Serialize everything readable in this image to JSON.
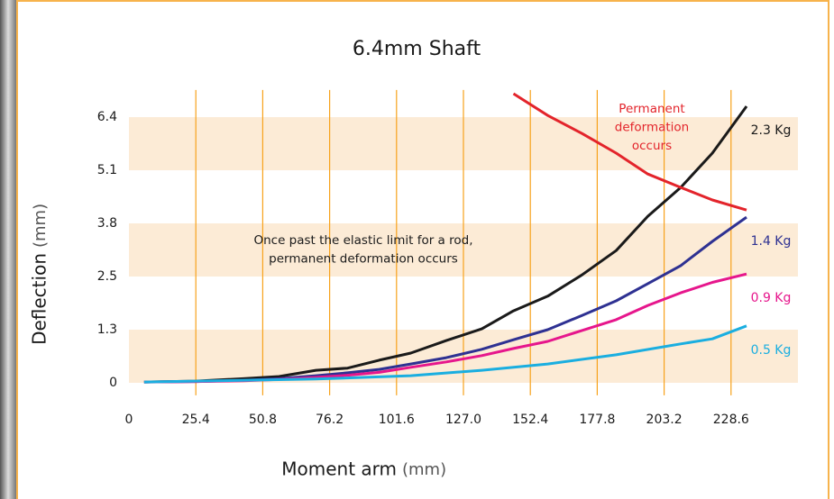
{
  "chart_data": {
    "type": "line",
    "title": "6.4mm Shaft",
    "x_label": "Moment arm",
    "x_unit": "(mm)",
    "y_label": "Deflection",
    "y_unit": "(mm)",
    "xlim": [
      0,
      254
    ],
    "xticks": [
      0,
      25.4,
      50.8,
      76.2,
      101.6,
      {
        "value": 127,
        "label": "127.0"
      },
      152.4,
      177.8,
      203.2,
      228.6
    ],
    "ylim": [
      -0.3,
      7.0
    ],
    "yticks": [
      0,
      {
        "value": 1.27,
        "label": "1.3"
      },
      {
        "value": 2.54,
        "label": "2.5"
      },
      {
        "value": 3.81,
        "label": "3.8"
      },
      {
        "value": 5.08,
        "label": "5.1"
      },
      {
        "value": 6.35,
        "label": "6.4"
      }
    ],
    "grid": true,
    "banded_rows": true,
    "series": [
      {
        "name": "2.3 Kg",
        "color": "#1a1a1a",
        "x": [
          5.8,
          25.4,
          43.5,
          57,
          71,
          83,
          95,
          107,
          120.5,
          134,
          146,
          159,
          172,
          185,
          197,
          209.5,
          221.5,
          234.5
        ],
        "values": [
          0.02,
          0.04,
          0.1,
          0.15,
          0.3,
          0.35,
          0.54,
          0.71,
          1.01,
          1.29,
          1.72,
          2.07,
          2.58,
          3.16,
          3.98,
          4.67,
          5.49,
          6.61
        ]
      },
      {
        "name": "1.4 Kg",
        "color": "#2e3192",
        "x": [
          5.8,
          25.4,
          43.5,
          57,
          71,
          83,
          95,
          107,
          120.5,
          134,
          146,
          159,
          172,
          185,
          197,
          209.5,
          221.5,
          234.5
        ],
        "values": [
          0.02,
          0.03,
          0.06,
          0.1,
          0.17,
          0.24,
          0.32,
          0.45,
          0.6,
          0.8,
          1.03,
          1.27,
          1.61,
          1.96,
          2.37,
          2.8,
          3.38,
          3.96
        ]
      },
      {
        "name": "0.9 Kg",
        "color": "#e6168c",
        "x": [
          5.8,
          25.4,
          43.5,
          57,
          71,
          83,
          95,
          107,
          120.5,
          134,
          146,
          159,
          172,
          185,
          197,
          209.5,
          221.5,
          234.5
        ],
        "values": [
          0.02,
          0.03,
          0.05,
          0.08,
          0.13,
          0.18,
          0.25,
          0.37,
          0.5,
          0.65,
          0.82,
          0.99,
          1.25,
          1.51,
          1.85,
          2.15,
          2.4,
          2.6
        ]
      },
      {
        "name": "0.5 Kg",
        "color": "#1aaee0",
        "x": [
          5.8,
          71,
          107,
          134,
          159,
          185,
          209.5,
          221.5,
          234.5
        ],
        "values": [
          0.02,
          0.09,
          0.17,
          0.3,
          0.45,
          0.67,
          0.93,
          1.05,
          1.36
        ]
      },
      {
        "color": "#e3242b",
        "x": [
          146,
          159,
          172,
          185,
          197,
          209.5,
          221.5,
          234.5
        ],
        "values": [
          6.91,
          6.39,
          5.96,
          5.49,
          4.99,
          4.67,
          4.37,
          4.13
        ]
      }
    ],
    "annotations": [
      {
        "lines": [
          "Permanent",
          "deformation",
          "occurs"
        ],
        "color": "#e3242b"
      },
      {
        "lines": [
          "Once past the elastic limit for a rod,",
          "permanent deformation occurs"
        ],
        "color": "#1a1a1a"
      }
    ]
  }
}
